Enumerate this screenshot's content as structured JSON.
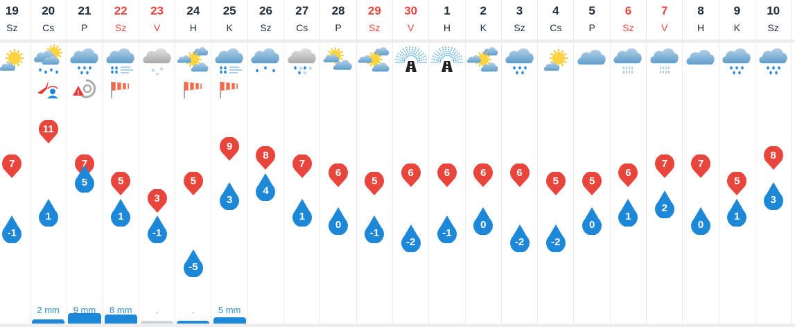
{
  "colors": {
    "weekend": "#e8453c",
    "max_pin": "#e8453c",
    "min_pin": "#1e88d8",
    "precip": "#1e88d8",
    "snow_precip": "#cfd6da"
  },
  "days": [
    {
      "day": "19",
      "weekday": "Sz",
      "weekend": false,
      "icon": "sun-behind-small-cloud",
      "icon2": "",
      "max": "7",
      "min": "-1",
      "precip": "",
      "mm": 0
    },
    {
      "day": "20",
      "weekday": "Cs",
      "weekend": false,
      "icon": "partly-cloudy-rain",
      "icon2": "wind-person-warning",
      "max": "11",
      "min": "1",
      "precip": "2 mm",
      "mm": 2
    },
    {
      "day": "21",
      "weekday": "P",
      "weekend": false,
      "icon": "rain",
      "icon2": "storm-warning",
      "max": "7",
      "min": "5",
      "precip": "9 mm",
      "mm": 9
    },
    {
      "day": "22",
      "weekday": "Sz",
      "weekend": true,
      "icon": "rain-wind",
      "icon2": "windsock",
      "max": "5",
      "min": "1",
      "precip": "8 mm",
      "mm": 8
    },
    {
      "day": "23",
      "weekday": "V",
      "weekend": true,
      "icon": "snow-grey",
      "icon2": "",
      "max": "3",
      "min": "-1",
      "precip": ".",
      "mm": 0.3,
      "type": "snow"
    },
    {
      "day": "24",
      "weekday": "H",
      "weekend": false,
      "icon": "sun-between-clouds",
      "icon2": "windsock",
      "max": "5",
      "min": "-5",
      "precip": ".",
      "mm": 0.3
    },
    {
      "day": "25",
      "weekday": "K",
      "weekend": false,
      "icon": "rain-wind",
      "icon2": "windsock",
      "max": "9",
      "min": "3",
      "precip": "5 mm",
      "mm": 5
    },
    {
      "day": "26",
      "weekday": "Sz",
      "weekend": false,
      "icon": "light-rain",
      "icon2": "",
      "max": "8",
      "min": "4",
      "precip": "",
      "mm": 0
    },
    {
      "day": "27",
      "weekday": "Cs",
      "weekend": false,
      "icon": "sleet-grey",
      "icon2": "",
      "max": "7",
      "min": "1",
      "precip": "",
      "mm": 0
    },
    {
      "day": "28",
      "weekday": "P",
      "weekend": false,
      "icon": "sun-cloud",
      "icon2": "",
      "max": "6",
      "min": "0",
      "precip": "",
      "mm": 0
    },
    {
      "day": "29",
      "weekday": "Sz",
      "weekend": true,
      "icon": "sun-between-clouds",
      "icon2": "",
      "max": "5",
      "min": "-1",
      "precip": "",
      "mm": 0
    },
    {
      "day": "30",
      "weekday": "V",
      "weekend": true,
      "icon": "road-fog",
      "icon2": "",
      "max": "6",
      "min": "-2",
      "precip": "",
      "mm": 0
    },
    {
      "day": "1",
      "weekday": "H",
      "weekend": false,
      "icon": "road-fog",
      "icon2": "",
      "max": "6",
      "min": "-1",
      "precip": "",
      "mm": 0
    },
    {
      "day": "2",
      "weekday": "K",
      "weekend": false,
      "icon": "sun-between-clouds",
      "icon2": "",
      "max": "6",
      "min": "0",
      "precip": "",
      "mm": 0
    },
    {
      "day": "3",
      "weekday": "Sz",
      "weekend": false,
      "icon": "rain",
      "icon2": "",
      "max": "6",
      "min": "-2",
      "precip": "",
      "mm": 0
    },
    {
      "day": "4",
      "weekday": "Cs",
      "weekend": false,
      "icon": "sun-behind-small-cloud",
      "icon2": "",
      "max": "5",
      "min": "-2",
      "precip": "",
      "mm": 0
    },
    {
      "day": "5",
      "weekday": "P",
      "weekend": false,
      "icon": "cloud",
      "icon2": "",
      "max": "5",
      "min": "0",
      "precip": "",
      "mm": 0
    },
    {
      "day": "6",
      "weekday": "Sz",
      "weekend": true,
      "icon": "drizzle",
      "icon2": "",
      "max": "6",
      "min": "1",
      "precip": "",
      "mm": 0
    },
    {
      "day": "7",
      "weekday": "V",
      "weekend": true,
      "icon": "drizzle",
      "icon2": "",
      "max": "7",
      "min": "2",
      "precip": "",
      "mm": 0
    },
    {
      "day": "8",
      "weekday": "H",
      "weekend": false,
      "icon": "cloud",
      "icon2": "",
      "max": "7",
      "min": "0",
      "precip": "",
      "mm": 0
    },
    {
      "day": "9",
      "weekday": "K",
      "weekend": false,
      "icon": "rain",
      "icon2": "",
      "max": "5",
      "min": "1",
      "precip": "",
      "mm": 0
    },
    {
      "day": "10",
      "weekday": "Sz",
      "weekend": false,
      "icon": "rain",
      "icon2": "",
      "max": "8",
      "min": "3",
      "precip": "",
      "mm": 0
    }
  ]
}
